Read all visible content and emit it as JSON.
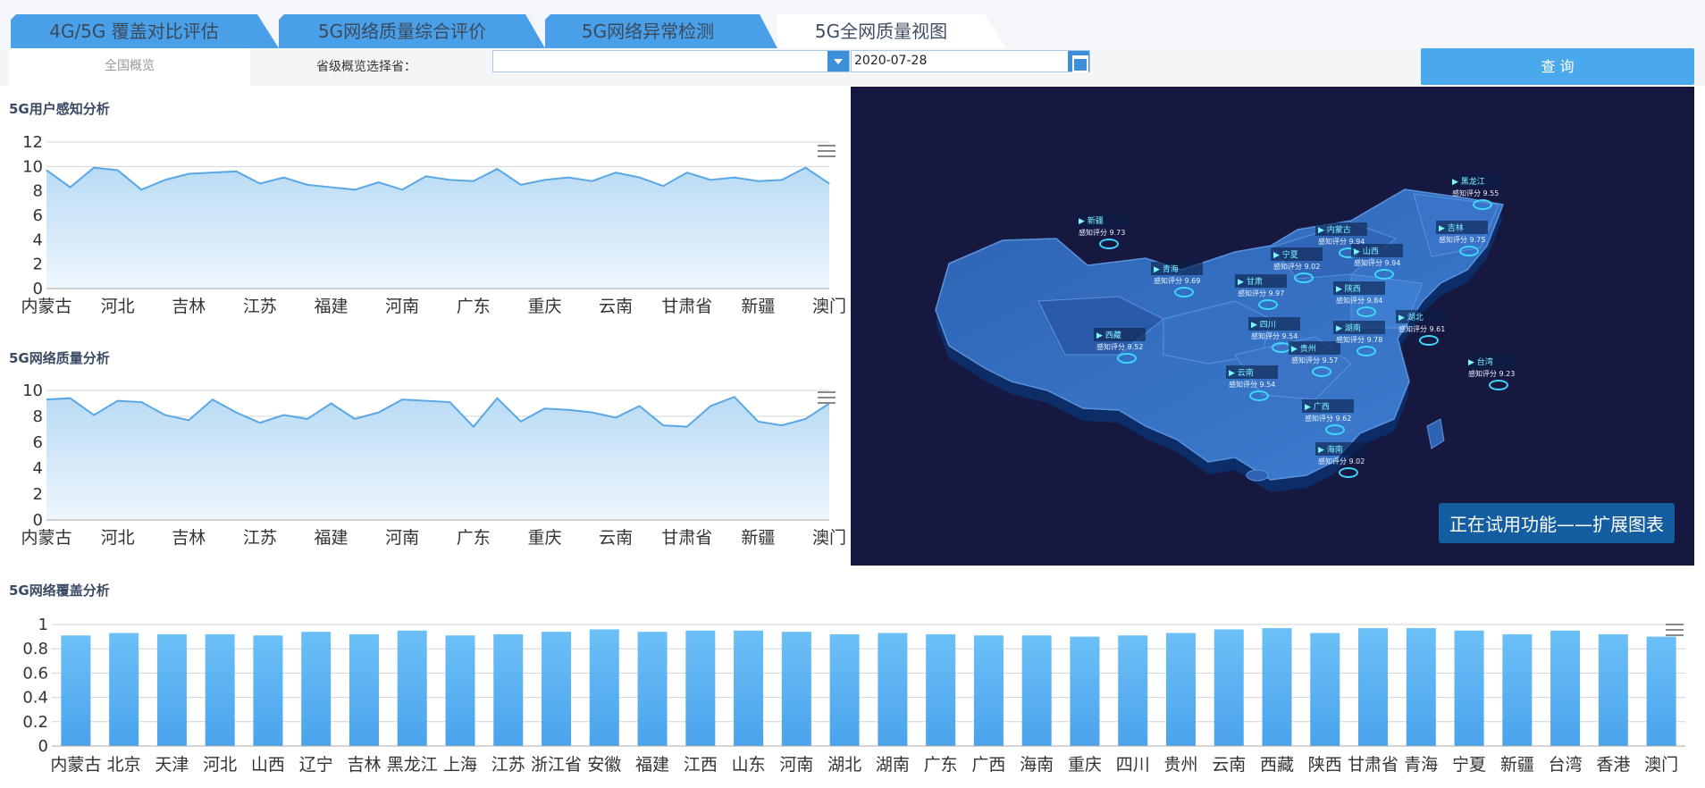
{
  "tabs": [
    {
      "label": "4G/5G 覆盖对比评估"
    },
    {
      "label": "5G网络质量综合评价"
    },
    {
      "label": "5G网络异常检测"
    },
    {
      "label": "5G全网质量视图"
    }
  ],
  "toolbar": {
    "subtab_label": "全国概览",
    "province_label": "省级概览选择省：",
    "province_value": "",
    "date_value": "2020-07-28",
    "query_label": "查 询"
  },
  "panels": {
    "user_perception_title": "5G用户感知分析",
    "quality_title": "5G网络质量分析",
    "coverage_title": "5G网络覆盖分析"
  },
  "map": {
    "trial_label": "正在试用功能——扩展图表",
    "labels": [
      {
        "name": "新疆",
        "score": "感知评分 9.73"
      },
      {
        "name": "西藏",
        "score": "感知评分 9.52"
      },
      {
        "name": "青海",
        "score": "感知评分 9.69"
      },
      {
        "name": "甘肃",
        "score": "感知评分 9.97"
      },
      {
        "name": "内蒙古",
        "score": "感知评分 9.94"
      },
      {
        "name": "黑龙江",
        "score": "感知评分 9.55"
      },
      {
        "name": "吉林",
        "score": "感知评分 9.75"
      },
      {
        "name": "四川",
        "score": "感知评分 9.54"
      },
      {
        "name": "云南",
        "score": "感知评分 9.54"
      },
      {
        "name": "贵州",
        "score": "感知评分 9.57"
      },
      {
        "name": "广西",
        "score": "感知评分 9.62"
      },
      {
        "name": "海南",
        "score": "感知评分 9.02"
      },
      {
        "name": "湖南",
        "score": "感知评分 9.78"
      },
      {
        "name": "湖北",
        "score": "感知评分 9.61"
      },
      {
        "name": "台湾",
        "score": "感知评分 9.23"
      },
      {
        "name": "宁夏",
        "score": "感知评分 9.02"
      },
      {
        "name": "陕西",
        "score": "感知评分 9.84"
      },
      {
        "name": "山西",
        "score": "感知评分 9.94"
      }
    ],
    "colors": {
      "background": "#161840",
      "land": "#2a5aa8",
      "land_light": "#3b74c6",
      "label_text": "#7ff6ff"
    }
  },
  "chart_data": [
    {
      "type": "area",
      "title": "5G用户感知分析",
      "ylim": [
        0,
        12
      ],
      "yticks": [
        0,
        2,
        4,
        6,
        8,
        10,
        12
      ],
      "xtick_labels": [
        "内蒙古",
        "河北",
        "吉林",
        "江苏",
        "福建",
        "河南",
        "广东",
        "重庆",
        "云南",
        "甘肃省",
        "新疆",
        "澳门"
      ],
      "values": [
        9.7,
        8.3,
        9.9,
        9.7,
        8.1,
        8.9,
        9.4,
        9.5,
        9.6,
        8.6,
        9.1,
        8.5,
        8.3,
        8.1,
        8.7,
        8.1,
        9.2,
        8.9,
        8.8,
        9.8,
        8.5,
        8.9,
        9.1,
        8.8,
        9.5,
        9.1,
        8.4,
        9.5,
        8.9,
        9.1,
        8.8,
        8.9,
        9.9,
        8.6
      ],
      "color": "#5aa7e6"
    },
    {
      "type": "area",
      "title": "5G网络质量分析",
      "ylim": [
        0,
        10
      ],
      "yticks": [
        0,
        2,
        4,
        6,
        8,
        10
      ],
      "xtick_labels": [
        "内蒙古",
        "河北",
        "吉林",
        "江苏",
        "福建",
        "河南",
        "广东",
        "重庆",
        "云南",
        "甘肃省",
        "新疆",
        "澳门"
      ],
      "values": [
        9.3,
        9.4,
        8.1,
        9.2,
        9.1,
        8.1,
        7.7,
        9.3,
        8.3,
        7.5,
        8.1,
        7.8,
        9.0,
        7.8,
        8.3,
        9.3,
        9.2,
        9.1,
        7.2,
        9.4,
        7.6,
        8.6,
        8.5,
        8.3,
        7.9,
        8.8,
        7.3,
        7.2,
        8.8,
        9.5,
        7.6,
        7.3,
        7.8,
        9.0
      ],
      "color": "#5aa7e6"
    },
    {
      "type": "bar",
      "title": "5G网络覆盖分析",
      "ylim": [
        0,
        1
      ],
      "yticks": [
        "0",
        "0.2",
        "0.4",
        "0.6",
        "0.8",
        "1"
      ],
      "categories": [
        "内蒙古",
        "北京",
        "天津",
        "河北",
        "山西",
        "辽宁",
        "吉林",
        "黑龙江",
        "上海",
        "江苏",
        "浙江省",
        "安徽",
        "福建",
        "江西",
        "山东",
        "河南",
        "湖北",
        "湖南",
        "广东",
        "广西",
        "海南",
        "重庆",
        "四川",
        "贵州",
        "云南",
        "西藏",
        "陕西",
        "甘肃省",
        "青海",
        "宁夏",
        "新疆",
        "台湾",
        "香港",
        "澳门"
      ],
      "values": [
        0.91,
        0.93,
        0.92,
        0.92,
        0.91,
        0.94,
        0.92,
        0.95,
        0.91,
        0.92,
        0.94,
        0.96,
        0.94,
        0.95,
        0.95,
        0.94,
        0.92,
        0.93,
        0.92,
        0.91,
        0.91,
        0.9,
        0.91,
        0.93,
        0.96,
        0.97,
        0.93,
        0.97,
        0.97,
        0.95,
        0.92,
        0.95,
        0.92,
        0.9
      ],
      "color": "#5ab6f5"
    }
  ]
}
